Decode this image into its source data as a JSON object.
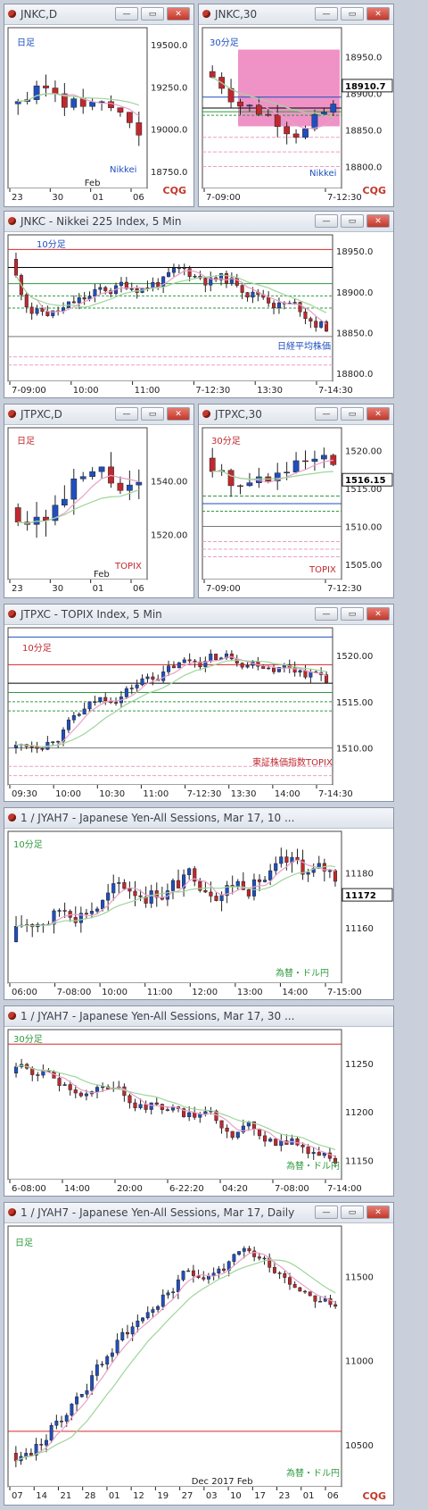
{
  "colors": {
    "up": "#1f4fbf",
    "down": "#c0282e",
    "pink": "#e8a0c8",
    "green": "#2e9a3e",
    "red_line": "#d9262e",
    "band": "#ea6fb4"
  },
  "buttons": {
    "minimize": "—",
    "maximize": "▭",
    "close": "✕"
  },
  "watermark": {
    "brand": "CQG"
  },
  "windows": [
    {
      "id": "w1",
      "title": "JNKC,D",
      "interval": "日足",
      "source": "Nikkei",
      "current": "",
      "x_labels": [
        "23",
        "30",
        "01",
        "06"
      ],
      "x_sub": "Feb",
      "y_labels": [
        "19500.0",
        "19250.0",
        "19000.0",
        "18750.0"
      ],
      "ymin": 18650,
      "ymax": 19600
    },
    {
      "id": "w2",
      "title": "JNKC,30",
      "interval": "30分足",
      "source": "Nikkei",
      "current": "18910.7",
      "x_labels": [
        "7-09:00",
        "7-12:30"
      ],
      "x_sub": "",
      "y_labels": [
        "18900.0",
        "18850.0",
        "18800.0",
        "18950.0"
      ],
      "ymin": 18770,
      "ymax": 18990
    },
    {
      "id": "w3",
      "title": "JNKC - Nikkei 225 Index, 5 Min",
      "interval": "10分足",
      "source": "日経平均株価",
      "current": "",
      "x_labels": [
        "7-09:00",
        "10:00",
        "11:00",
        "7-12:30",
        "13:30",
        "7-14:30"
      ],
      "x_sub": "",
      "y_labels": [
        "18950.0",
        "18900.0",
        "18850.0",
        "18800.0"
      ],
      "ymin": 18790,
      "ymax": 18970
    },
    {
      "id": "w4",
      "title": "JTPXC,D",
      "interval": "日足",
      "source": "TOPIX",
      "current": "",
      "x_labels": [
        "23",
        "30",
        "01",
        "06"
      ],
      "x_sub": "Feb",
      "y_labels": [
        "1540.00",
        "1520.00"
      ],
      "ymin": 1503,
      "ymax": 1560
    },
    {
      "id": "w5",
      "title": "JTPXC,30",
      "interval": "30分足",
      "source": "TOPIX",
      "current": "1516.15",
      "x_labels": [
        "7-09:00",
        "7-12:30"
      ],
      "x_sub": "",
      "y_labels": [
        "1520.00",
        "1515.00",
        "1510.00",
        "1505.00"
      ],
      "ymin": 1503,
      "ymax": 1523
    },
    {
      "id": "w6",
      "title": "JTPXC - TOPIX Index, 5 Min",
      "interval": "10分足",
      "source": "東証株価指数TOPIX",
      "current": "",
      "x_labels": [
        "09:30",
        "10:00",
        "10:30",
        "11:00",
        "7-12:30",
        "13:30",
        "14:00",
        "7-14:30"
      ],
      "x_sub": "",
      "y_labels": [
        "1520.00",
        "1515.00",
        "1510.00"
      ],
      "ymin": 1506,
      "ymax": 1523
    },
    {
      "id": "w7",
      "title": "1 / JYAH7 - Japanese Yen-All Sessions, Mar 17, 10 ...",
      "interval": "10分足",
      "source": "為替・ドル円",
      "current": "11172",
      "x_labels": [
        "06:00",
        "7-08:00",
        "10:00",
        "11:00",
        "12:00",
        "13:00",
        "14:00",
        "7-15:00"
      ],
      "x_sub": "",
      "y_labels": [
        "11180",
        "11160"
      ],
      "ymin": 11140,
      "ymax": 11195
    },
    {
      "id": "w8",
      "title": "1 / JYAH7 - Japanese Yen-All Sessions, Mar 17, 30 ...",
      "interval": "30分足",
      "source": "為替・ドル円",
      "current": "",
      "x_labels": [
        "6-08:00",
        "14:00",
        "20:00",
        "6-22:20",
        "04:20",
        "7-08:00",
        "7-14:00"
      ],
      "x_sub": "",
      "y_labels": [
        "11250",
        "11200",
        "11150"
      ],
      "ymin": 11130,
      "ymax": 11285
    },
    {
      "id": "w9",
      "title": "1 / JYAH7 - Japanese Yen-All Sessions, Mar 17, Daily",
      "interval": "日足",
      "source": "為替・ドル円",
      "current": "",
      "x_labels": [
        "07",
        "14",
        "21",
        "28",
        "01",
        "12",
        "19",
        "27",
        "03",
        "10",
        "17",
        "23",
        "01",
        "06"
      ],
      "x_sub": "Dec  2017  Feb",
      "y_labels": [
        "11500",
        "11000",
        "10500"
      ],
      "ymin": 10250,
      "ymax": 11800
    }
  ]
}
